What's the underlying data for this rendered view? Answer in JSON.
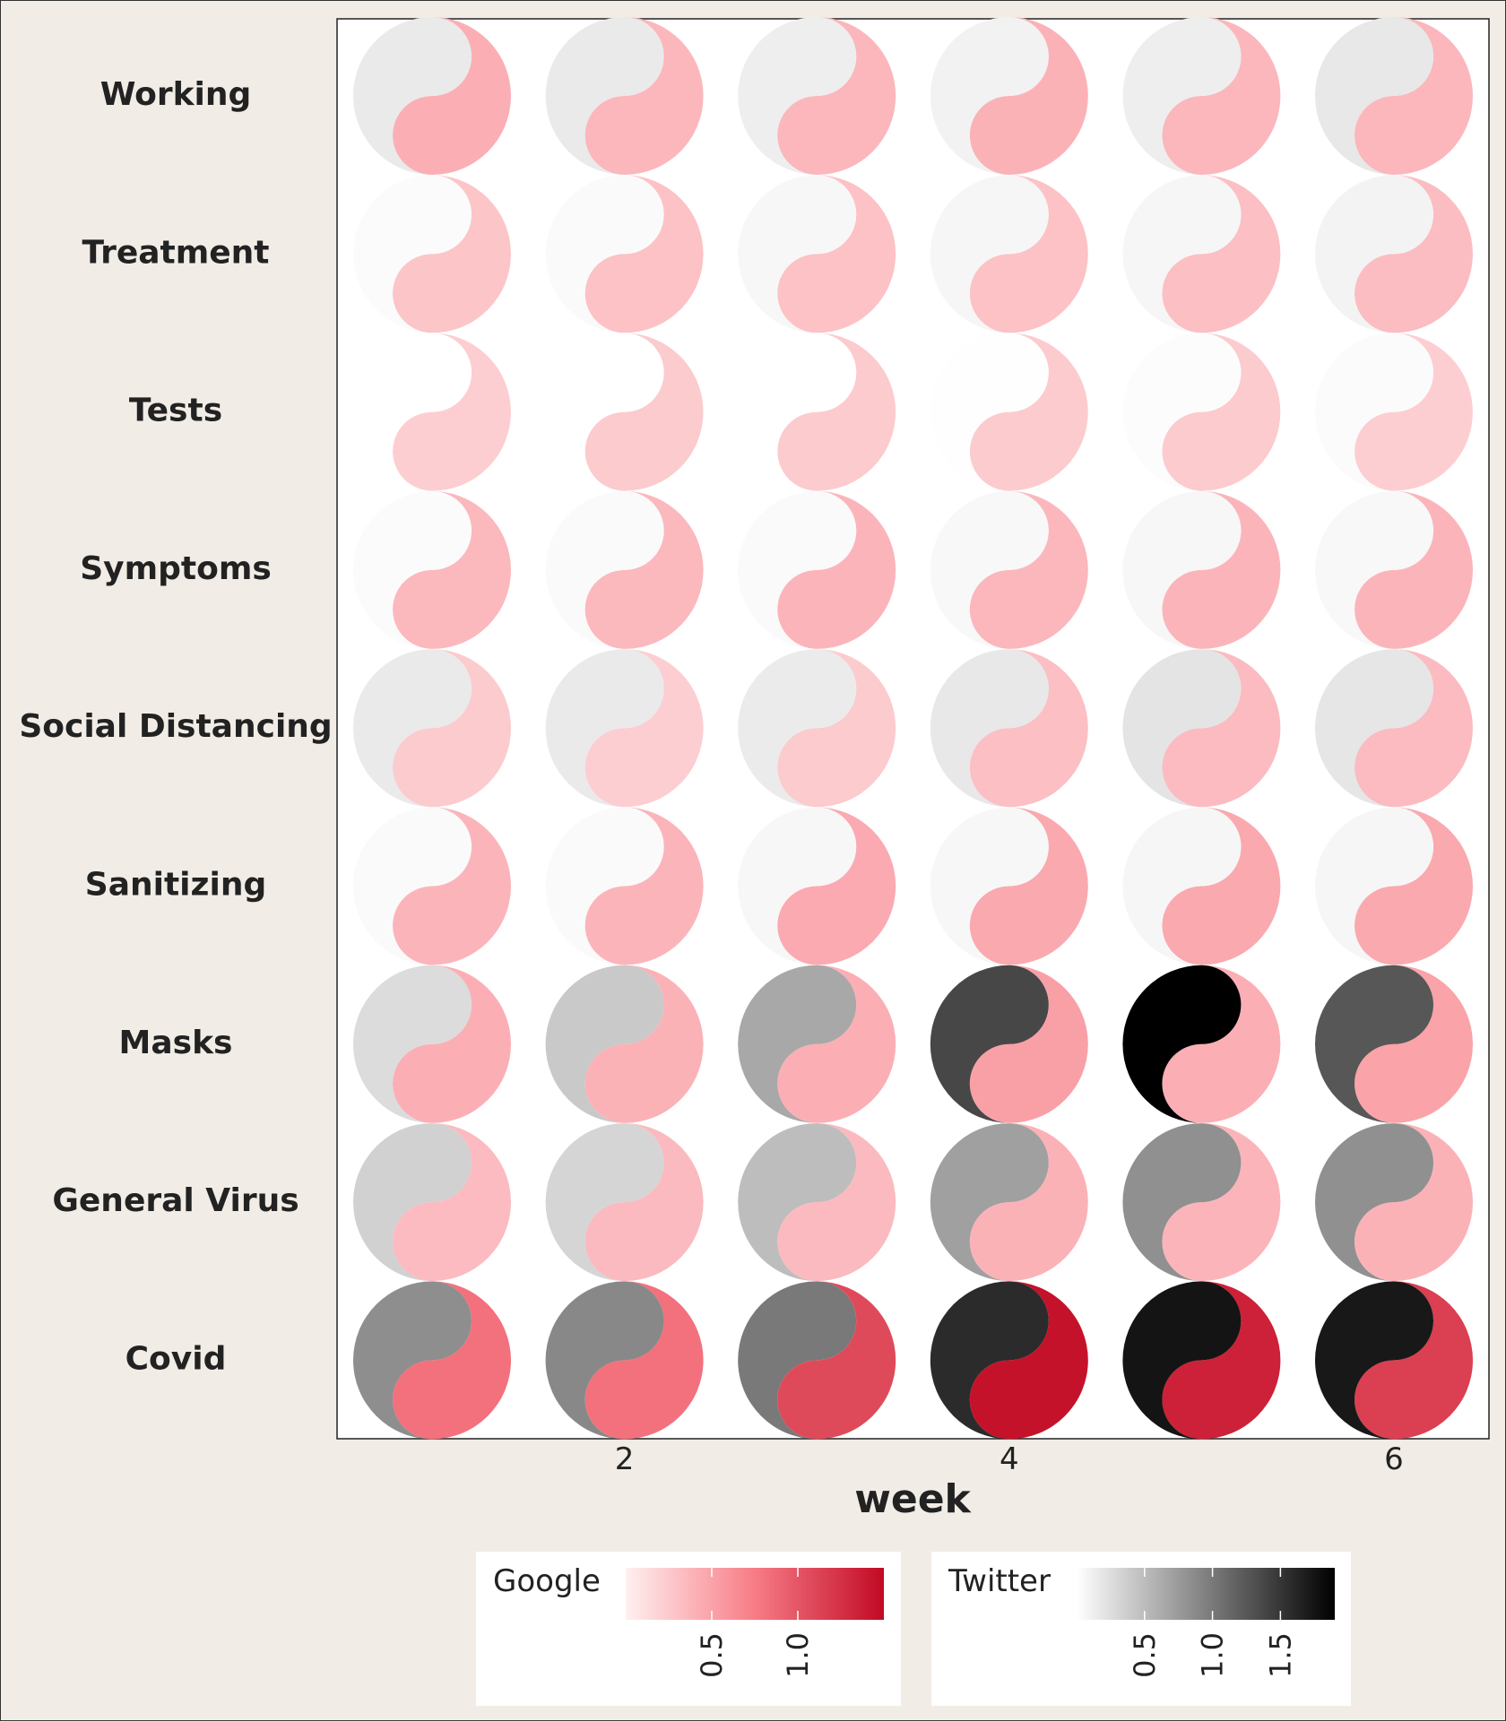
{
  "chart_data": {
    "type": "heatmap",
    "glyph": "yin-yang",
    "x": [
      1,
      2,
      3,
      4,
      5,
      6
    ],
    "x_ticks": [
      2,
      4,
      6
    ],
    "xlabel": "week",
    "categories": [
      "Working",
      "Treatment",
      "Tests",
      "Symptoms",
      "Social Distancing",
      "Sanitizing",
      "Masks",
      "General Virus",
      "Covid"
    ],
    "series": [
      {
        "name": "Google",
        "color_low": "#fff0f0",
        "color_high": "#c10a25",
        "legend_ticks": [
          "0.5",
          "1.0"
        ],
        "range": [
          0.0,
          1.5
        ],
        "values": [
          [
            0.42,
            0.37,
            0.37,
            0.4,
            0.37,
            0.37
          ],
          [
            0.28,
            0.3,
            0.3,
            0.3,
            0.32,
            0.33
          ],
          [
            0.22,
            0.24,
            0.24,
            0.24,
            0.24,
            0.22
          ],
          [
            0.36,
            0.36,
            0.38,
            0.37,
            0.38,
            0.38
          ],
          [
            0.24,
            0.22,
            0.24,
            0.32,
            0.34,
            0.34
          ],
          [
            0.38,
            0.38,
            0.45,
            0.46,
            0.46,
            0.46
          ],
          [
            0.42,
            0.4,
            0.42,
            0.52,
            0.42,
            0.5
          ],
          [
            0.34,
            0.35,
            0.35,
            0.4,
            0.38,
            0.4
          ],
          [
            0.82,
            0.82,
            1.08,
            1.45,
            1.35,
            1.15
          ]
        ]
      },
      {
        "name": "Twitter",
        "color_low": "#ffffff",
        "color_high": "#000000",
        "legend_ticks": [
          "0.5",
          "1.0",
          "1.5"
        ],
        "range": [
          0.0,
          1.9
        ],
        "values": [
          [
            0.16,
            0.16,
            0.13,
            0.1,
            0.13,
            0.17
          ],
          [
            0.03,
            0.04,
            0.06,
            0.07,
            0.07,
            0.09
          ],
          [
            0.0,
            0.0,
            0.0,
            0.01,
            0.02,
            0.03
          ],
          [
            0.03,
            0.04,
            0.04,
            0.05,
            0.06,
            0.05
          ],
          [
            0.16,
            0.16,
            0.15,
            0.17,
            0.2,
            0.19
          ],
          [
            0.04,
            0.04,
            0.06,
            0.06,
            0.07,
            0.07
          ],
          [
            0.26,
            0.4,
            0.65,
            1.37,
            1.9,
            1.25
          ],
          [
            0.34,
            0.31,
            0.49,
            0.71,
            0.83,
            0.83
          ],
          [
            0.84,
            0.89,
            1.0,
            1.58,
            1.75,
            1.72
          ]
        ]
      }
    ]
  }
}
